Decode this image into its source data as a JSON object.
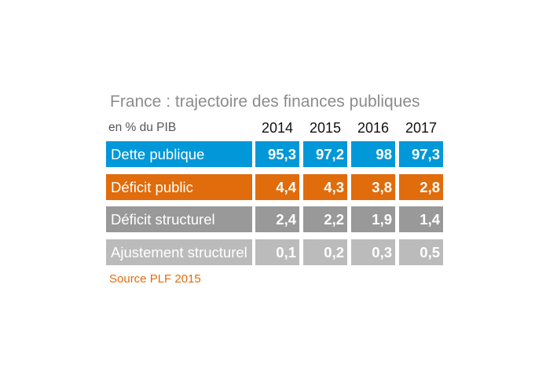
{
  "title": "France : trajectoire des finances publiques",
  "unit_label": "en % du PIB",
  "source": "Source PLF 2015",
  "colors": {
    "row1": "#0098d8",
    "row2": "#e06c0b",
    "row3": "#999999",
    "row4": "#bbbbbb"
  },
  "chart_data": {
    "type": "table",
    "title": "France : trajectoire des finances publiques",
    "unit": "en % du PIB",
    "columns": [
      "2014",
      "2015",
      "2016",
      "2017"
    ],
    "rows": [
      {
        "label": "Dette publique",
        "values": [
          "95,3",
          "97,2",
          "98",
          "97,3"
        ]
      },
      {
        "label": "Déficit public",
        "values": [
          "4,4",
          "4,3",
          "3,8",
          "2,8"
        ]
      },
      {
        "label": "Déficit structurel",
        "values": [
          "2,4",
          "2,2",
          "1,9",
          "1,4"
        ]
      },
      {
        "label": "Ajustement structurel",
        "values": [
          "0,1",
          "0,2",
          "0,3",
          "0,5"
        ]
      }
    ],
    "source": "Source PLF 2015"
  }
}
